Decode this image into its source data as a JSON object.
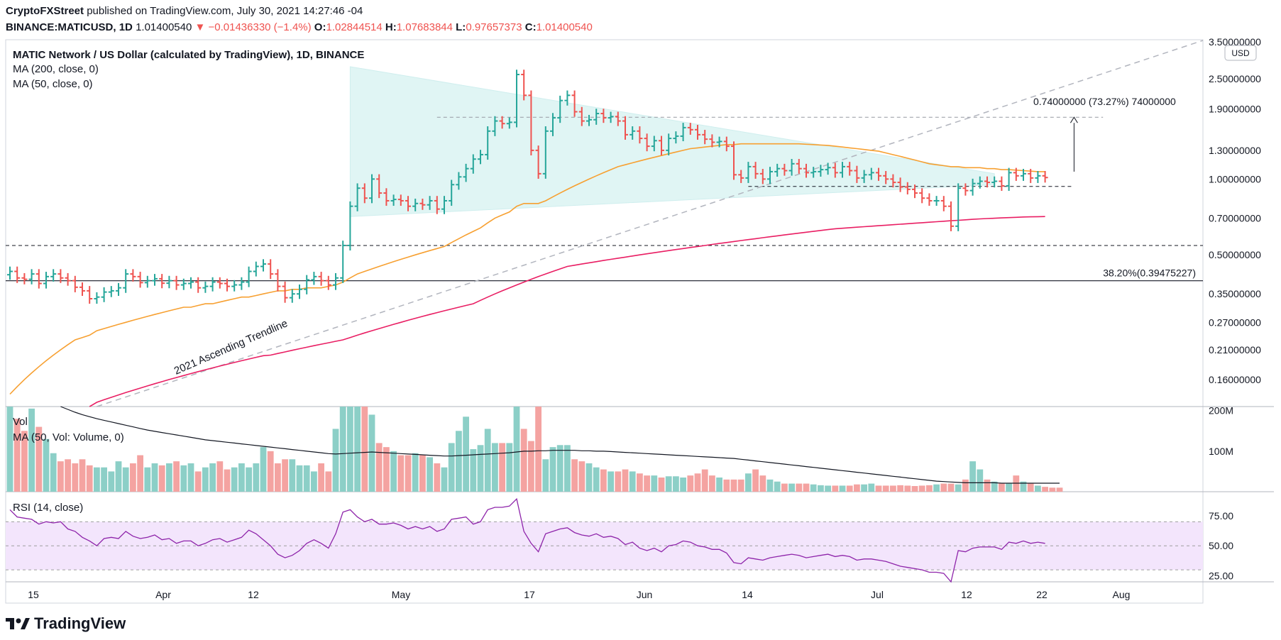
{
  "header": {
    "publisher": "CryptoFXStreet",
    "published_text": " published on TradingView.com, July 30, 2021 14:27:46 -04",
    "symbol": "BINANCE:MATICUSD, 1D",
    "last": "1.01400540",
    "change": "▼ −0.01436330 (−1.4%)",
    "o_label": "O:",
    "o": "1.02844514",
    "h_label": "H:",
    "h": "1.07683844",
    "l_label": "L:",
    "l": "0.97657373",
    "c_label": "C:",
    "c": "1.01400540"
  },
  "legend": {
    "title": "MATIC Network / US Dollar (calculated by TradingView), 1D, BINANCE",
    "ma200": "MA (200, close, 0)",
    "ma50": "MA (50, close, 0)",
    "vol": "Vol",
    "vol_ma": "MA (50, Vol: Volume, 0)",
    "rsi": "RSI (14, close)"
  },
  "colors": {
    "up": "#26a69a",
    "down": "#ef5350",
    "ma50": "#f7a031",
    "ma200": "#e91e63",
    "rsi": "#8e24aa",
    "rsi_band": "#f3e5fc",
    "triangle": "#e0f5f4"
  },
  "annotations": {
    "trendline": "2021 Ascending Trendline",
    "fib": "38.20%(0.39475227)",
    "target": "0.74000000 (73.27%) 74000000",
    "currency": "USD"
  },
  "footer": {
    "brand": "TradingView"
  },
  "chart_data": {
    "type": "line",
    "x_ticks": [
      "15",
      "Apr",
      "12",
      "May",
      "17",
      "Jun",
      "14",
      "Jul",
      "12",
      "22",
      "Aug"
    ],
    "price_axis": {
      "scale": "log",
      "ticks": [
        "3.50000000",
        "2.50000000",
        "1.90000000",
        "1.30000000",
        "1.00000000",
        "0.70000000",
        "0.50000000",
        "0.35000000",
        "0.27000000",
        "0.21000000",
        "0.16000000"
      ],
      "range": [
        0.125,
        3.55
      ]
    },
    "volume_axis": {
      "ticks": [
        "200M",
        "100M"
      ],
      "range": [
        0,
        210000000
      ]
    },
    "rsi_axis": {
      "ticks": [
        "75.00",
        "50.00",
        "25.00"
      ],
      "range": [
        20,
        95
      ],
      "band": [
        30,
        70
      ]
    },
    "price_levels": {
      "fib_38_2": 0.39475227,
      "support_low": 0.545,
      "support_mid": 0.935,
      "resistance": 1.76
    },
    "triangle": {
      "apex_day": 47,
      "upper_start": [
        0,
        2.72
      ],
      "lower_start": [
        0,
        0.71
      ],
      "end_day": 89
    },
    "series": [
      {
        "name": "MATIC Network / US Dollar",
        "start": "2021-03-12",
        "close": [
          0.43,
          0.405,
          0.4,
          0.42,
          0.385,
          0.41,
          0.42,
          0.405,
          0.395,
          0.372,
          0.36,
          0.335,
          0.34,
          0.356,
          0.36,
          0.37,
          0.42,
          0.41,
          0.388,
          0.395,
          0.402,
          0.386,
          0.395,
          0.38,
          0.385,
          0.39,
          0.37,
          0.375,
          0.39,
          0.385,
          0.375,
          0.38,
          0.39,
          0.43,
          0.45,
          0.46,
          0.42,
          0.375,
          0.338,
          0.35,
          0.365,
          0.398,
          0.41,
          0.395,
          0.38,
          0.405,
          0.545,
          0.78,
          0.92,
          0.84,
          1.0,
          0.88,
          0.82,
          0.83,
          0.82,
          0.78,
          0.8,
          0.79,
          0.82,
          0.76,
          0.82,
          0.95,
          1.02,
          1.1,
          1.2,
          1.25,
          1.55,
          1.7,
          1.66,
          1.68,
          2.6,
          2.15,
          1.3,
          1.05,
          1.55,
          1.75,
          2.05,
          2.15,
          1.85,
          1.7,
          1.72,
          1.82,
          1.75,
          1.77,
          1.7,
          1.5,
          1.55,
          1.45,
          1.35,
          1.42,
          1.3,
          1.45,
          1.48,
          1.6,
          1.57,
          1.5,
          1.44,
          1.4,
          1.41,
          1.35,
          1.04,
          1.01,
          1.12,
          1.05,
          1.0,
          1.07,
          1.1,
          1.08,
          1.15,
          1.1,
          1.06,
          1.07,
          1.09,
          1.11,
          1.06,
          1.12,
          1.08,
          1.01,
          1.04,
          1.06,
          1.03,
          1.0,
          0.97,
          0.93,
          0.91,
          0.88,
          0.84,
          0.82,
          0.82,
          0.78,
          0.65,
          0.92,
          0.9,
          0.96,
          0.98,
          0.97,
          0.98,
          0.94,
          1.06,
          1.03,
          1.05,
          1.01,
          1.03,
          1.014
        ]
      },
      {
        "name": "MA (50, close, 0)",
        "values": [
          0.14,
          0.15,
          0.16,
          0.17,
          0.18,
          0.19,
          0.2,
          0.21,
          0.22,
          0.23,
          0.235,
          0.24,
          0.25,
          0.255,
          0.26,
          0.265,
          0.27,
          0.275,
          0.28,
          0.285,
          0.29,
          0.295,
          0.3,
          0.305,
          0.31,
          0.31,
          0.315,
          0.32,
          0.32,
          0.325,
          0.33,
          0.335,
          0.34,
          0.34,
          0.345,
          0.35,
          0.355,
          0.36,
          0.36,
          0.365,
          0.365,
          0.37,
          0.37,
          0.37,
          0.375,
          0.38,
          0.39,
          0.405,
          0.42,
          0.43,
          0.44,
          0.45,
          0.46,
          0.47,
          0.48,
          0.49,
          0.5,
          0.51,
          0.52,
          0.53,
          0.54,
          0.56,
          0.58,
          0.6,
          0.62,
          0.64,
          0.67,
          0.7,
          0.72,
          0.74,
          0.78,
          0.8,
          0.8,
          0.8,
          0.82,
          0.85,
          0.88,
          0.91,
          0.94,
          0.97,
          1.0,
          1.03,
          1.06,
          1.09,
          1.12,
          1.14,
          1.16,
          1.18,
          1.2,
          1.22,
          1.24,
          1.26,
          1.28,
          1.3,
          1.32,
          1.33,
          1.34,
          1.35,
          1.36,
          1.37,
          1.37,
          1.38,
          1.38,
          1.38,
          1.38,
          1.38,
          1.38,
          1.38,
          1.38,
          1.38,
          1.375,
          1.37,
          1.365,
          1.36,
          1.35,
          1.34,
          1.33,
          1.32,
          1.31,
          1.3,
          1.29,
          1.27,
          1.25,
          1.23,
          1.21,
          1.19,
          1.17,
          1.15,
          1.14,
          1.13,
          1.12,
          1.12,
          1.11,
          1.11,
          1.11,
          1.1,
          1.1,
          1.09,
          1.09,
          1.085,
          1.08,
          1.075,
          1.07,
          1.07
        ]
      },
      {
        "name": "MA (200, close, 0)",
        "values": [
          0.07,
          0.075,
          0.08,
          0.085,
          0.09,
          0.095,
          0.1,
          0.105,
          0.11,
          0.115,
          0.12,
          0.125,
          0.13,
          0.133,
          0.136,
          0.139,
          0.142,
          0.145,
          0.148,
          0.151,
          0.154,
          0.157,
          0.16,
          0.163,
          0.166,
          0.169,
          0.172,
          0.175,
          0.178,
          0.181,
          0.184,
          0.187,
          0.19,
          0.193,
          0.196,
          0.199,
          0.2,
          0.203,
          0.206,
          0.209,
          0.212,
          0.215,
          0.218,
          0.221,
          0.224,
          0.227,
          0.23,
          0.235,
          0.24,
          0.245,
          0.25,
          0.255,
          0.26,
          0.265,
          0.27,
          0.275,
          0.28,
          0.285,
          0.29,
          0.295,
          0.3,
          0.305,
          0.31,
          0.315,
          0.32,
          0.33,
          0.34,
          0.35,
          0.36,
          0.37,
          0.38,
          0.39,
          0.4,
          0.41,
          0.42,
          0.43,
          0.44,
          0.45,
          0.455,
          0.46,
          0.465,
          0.47,
          0.475,
          0.48,
          0.485,
          0.49,
          0.495,
          0.5,
          0.505,
          0.51,
          0.515,
          0.52,
          0.525,
          0.53,
          0.535,
          0.54,
          0.545,
          0.55,
          0.555,
          0.56,
          0.565,
          0.57,
          0.575,
          0.58,
          0.585,
          0.59,
          0.595,
          0.6,
          0.605,
          0.61,
          0.615,
          0.62,
          0.625,
          0.63,
          0.635,
          0.638,
          0.641,
          0.644,
          0.647,
          0.65,
          0.653,
          0.656,
          0.659,
          0.662,
          0.665,
          0.668,
          0.671,
          0.674,
          0.677,
          0.68,
          0.683,
          0.686,
          0.689,
          0.692,
          0.695,
          0.697,
          0.699,
          0.701,
          0.703,
          0.705,
          0.707,
          0.708,
          0.709,
          0.71
        ]
      },
      {
        "name": "Vol",
        "values": [
          210,
          180,
          150,
          205,
          160,
          130,
          95,
          75,
          80,
          70,
          80,
          65,
          60,
          60,
          50,
          75,
          60,
          70,
          90,
          60,
          70,
          65,
          70,
          75,
          65,
          70,
          50,
          60,
          70,
          75,
          55,
          60,
          70,
          60,
          70,
          110,
          100,
          70,
          80,
          80,
          65,
          65,
          50,
          70,
          50,
          155,
          210,
          210,
          210,
          210,
          190,
          120,
          110,
          100,
          90,
          90,
          95,
          90,
          85,
          70,
          60,
          120,
          150,
          185,
          105,
          115,
          155,
          120,
          120,
          120,
          210,
          155,
          125,
          210,
          80,
          110,
          115,
          115,
          80,
          75,
          70,
          60,
          55,
          50,
          50,
          55,
          50,
          45,
          40,
          40,
          35,
          38,
          38,
          35,
          40,
          45,
          55,
          40,
          35,
          30,
          30,
          30,
          45,
          55,
          40,
          30,
          25,
          20,
          20,
          20,
          20,
          18,
          16,
          15,
          15,
          15,
          15,
          18,
          18,
          20,
          15,
          15,
          15,
          16,
          15,
          14,
          15,
          16,
          18,
          20,
          20,
          18,
          30,
          75,
          55,
          30,
          25,
          20,
          20,
          40,
          25,
          20,
          15,
          12,
          10,
          10
        ]
      },
      {
        "name": "MA (50, Vol: Volume, 0)",
        "values": [
          260,
          255,
          248,
          240,
          232,
          225,
          218,
          210,
          203,
          196,
          190,
          185,
          180,
          176,
          172,
          168,
          164,
          160,
          156,
          152,
          149,
          146,
          143,
          140,
          137,
          134,
          131,
          128,
          126,
          124,
          122,
          120,
          118,
          116,
          114,
          112,
          110,
          108,
          106,
          104,
          102,
          100,
          98,
          96,
          94,
          93,
          94,
          95,
          96,
          97,
          98,
          97,
          96,
          95,
          94,
          93,
          92,
          91,
          90,
          89,
          88,
          88,
          89,
          90,
          91,
          92,
          93,
          94,
          95,
          96,
          98,
          100,
          100,
          101,
          101,
          102,
          102,
          102,
          102,
          101,
          101,
          100,
          100,
          99,
          98,
          97,
          96,
          95,
          94,
          93,
          92,
          91,
          90,
          89,
          88,
          87,
          86,
          85,
          84,
          83,
          82,
          80,
          78,
          76,
          74,
          72,
          70,
          68,
          66,
          64,
          62,
          60,
          58,
          56,
          54,
          52,
          50,
          48,
          46,
          44,
          42,
          40,
          38,
          36,
          34,
          32,
          30,
          28,
          26,
          25,
          24,
          23,
          22,
          22,
          22,
          22,
          22,
          21,
          21,
          21,
          21,
          21,
          21,
          21,
          21,
          21
        ]
      },
      {
        "name": "RSI (14, close)",
        "values": [
          80,
          74,
          73,
          72,
          68,
          70,
          69,
          70,
          64,
          62,
          57,
          54,
          50,
          56,
          57,
          56,
          62,
          58,
          56,
          57,
          59,
          55,
          56,
          52,
          54,
          54,
          50,
          52,
          55,
          56,
          53,
          55,
          57,
          63,
          60,
          55,
          50,
          43,
          40,
          42,
          46,
          52,
          55,
          52,
          48,
          60,
          78,
          80,
          74,
          70,
          72,
          68,
          68,
          69,
          67,
          64,
          66,
          64,
          66,
          62,
          64,
          72,
          73,
          74,
          68,
          70,
          80,
          82,
          82,
          83,
          89,
          62,
          52,
          45,
          60,
          62,
          64,
          65,
          61,
          59,
          58,
          60,
          57,
          58,
          56,
          51,
          53,
          48,
          46,
          48,
          45,
          50,
          51,
          54,
          53,
          50,
          49,
          47,
          47,
          44,
          36,
          35,
          40,
          39,
          38,
          40,
          41,
          42,
          43,
          42,
          40,
          41,
          42,
          43,
          41,
          42,
          41,
          38,
          39,
          39,
          38,
          37,
          35,
          33,
          32,
          31,
          30,
          28,
          28,
          27,
          20,
          46,
          45,
          48,
          49,
          49,
          49,
          47,
          53,
          52,
          54,
          52,
          53,
          52
        ]
      }
    ]
  }
}
